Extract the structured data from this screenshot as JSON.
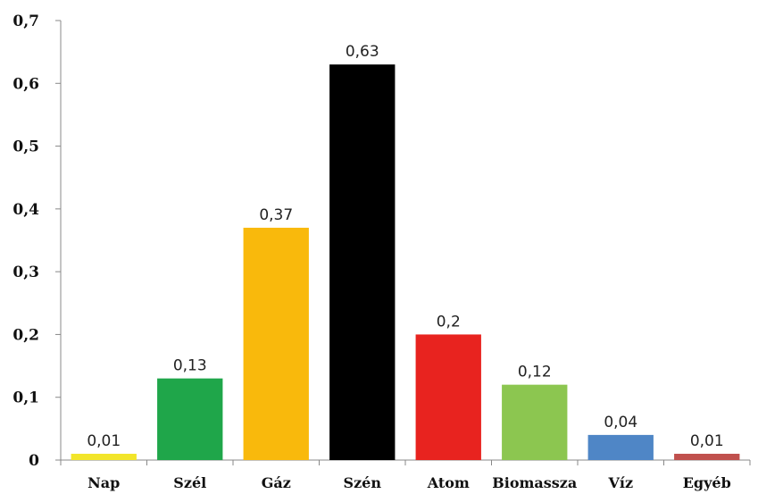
{
  "chart_data": {
    "type": "bar",
    "title": "",
    "xlabel": "",
    "ylabel": "",
    "categories": [
      "Nap",
      "Szél",
      "Gáz",
      "Szén",
      "Atom",
      "Biomassza",
      "Víz",
      "Egyéb"
    ],
    "values": [
      0.01,
      0.13,
      0.37,
      0.63,
      0.2,
      0.12,
      0.04,
      0.01
    ],
    "value_labels": [
      "0,01",
      "0,13",
      "0,37",
      "0,63",
      "0,2",
      "0,12",
      "0,04",
      "0,01"
    ],
    "colors": [
      "#f2e52a",
      "#1fa64a",
      "#f9b90c",
      "#000000",
      "#e8231f",
      "#8cc650",
      "#4f86c6",
      "#c0504d"
    ],
    "ylim": [
      0,
      0.7
    ],
    "yticks": [
      0,
      0.1,
      0.2,
      0.3,
      0.4,
      0.5,
      0.6,
      0.7
    ],
    "ytick_labels": [
      "0",
      "0,1",
      "0,2",
      "0,3",
      "0,4",
      "0,5",
      "0,6",
      "0,7"
    ],
    "grid": false,
    "legend": "none"
  }
}
